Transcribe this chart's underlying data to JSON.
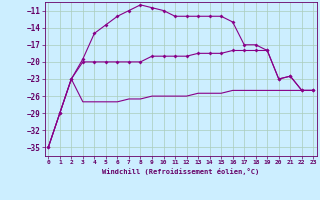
{
  "xlabel": "Windchill (Refroidissement éolien,°C)",
  "background_color": "#cceeff",
  "grid_color": "#aaddcc",
  "line_color": "#880088",
  "yticks": [
    -35,
    -32,
    -29,
    -26,
    -23,
    -20,
    -17,
    -14,
    -11
  ],
  "xticks": [
    0,
    1,
    2,
    3,
    4,
    5,
    6,
    7,
    8,
    9,
    10,
    11,
    12,
    13,
    14,
    15,
    16,
    17,
    18,
    19,
    20,
    21,
    22,
    23
  ],
  "line1_y": [
    -35,
    -29,
    -23,
    -19.5,
    -15,
    -13.5,
    -12,
    -11,
    -10,
    -10.5,
    -11,
    -12,
    -12,
    -12,
    -12,
    -12,
    -13,
    -17,
    -17,
    -18,
    -23,
    -22.5,
    -25,
    -25
  ],
  "line2_y": [
    -35,
    -29,
    -23,
    -20,
    -20,
    -20,
    -20,
    -20,
    -20,
    -19,
    -19,
    -19,
    -19,
    -18.5,
    -18.5,
    -18.5,
    -18,
    -18,
    -18,
    -18,
    -23,
    -22.5,
    -25,
    -25
  ],
  "line3_y": [
    -35,
    -29,
    -23,
    -27,
    -27,
    -27,
    -27,
    -26.5,
    -26.5,
    -26,
    -26,
    -26,
    -26,
    -25.5,
    -25.5,
    -25.5,
    -25,
    -25,
    -25,
    -25,
    -25,
    -25,
    -25,
    -25
  ]
}
